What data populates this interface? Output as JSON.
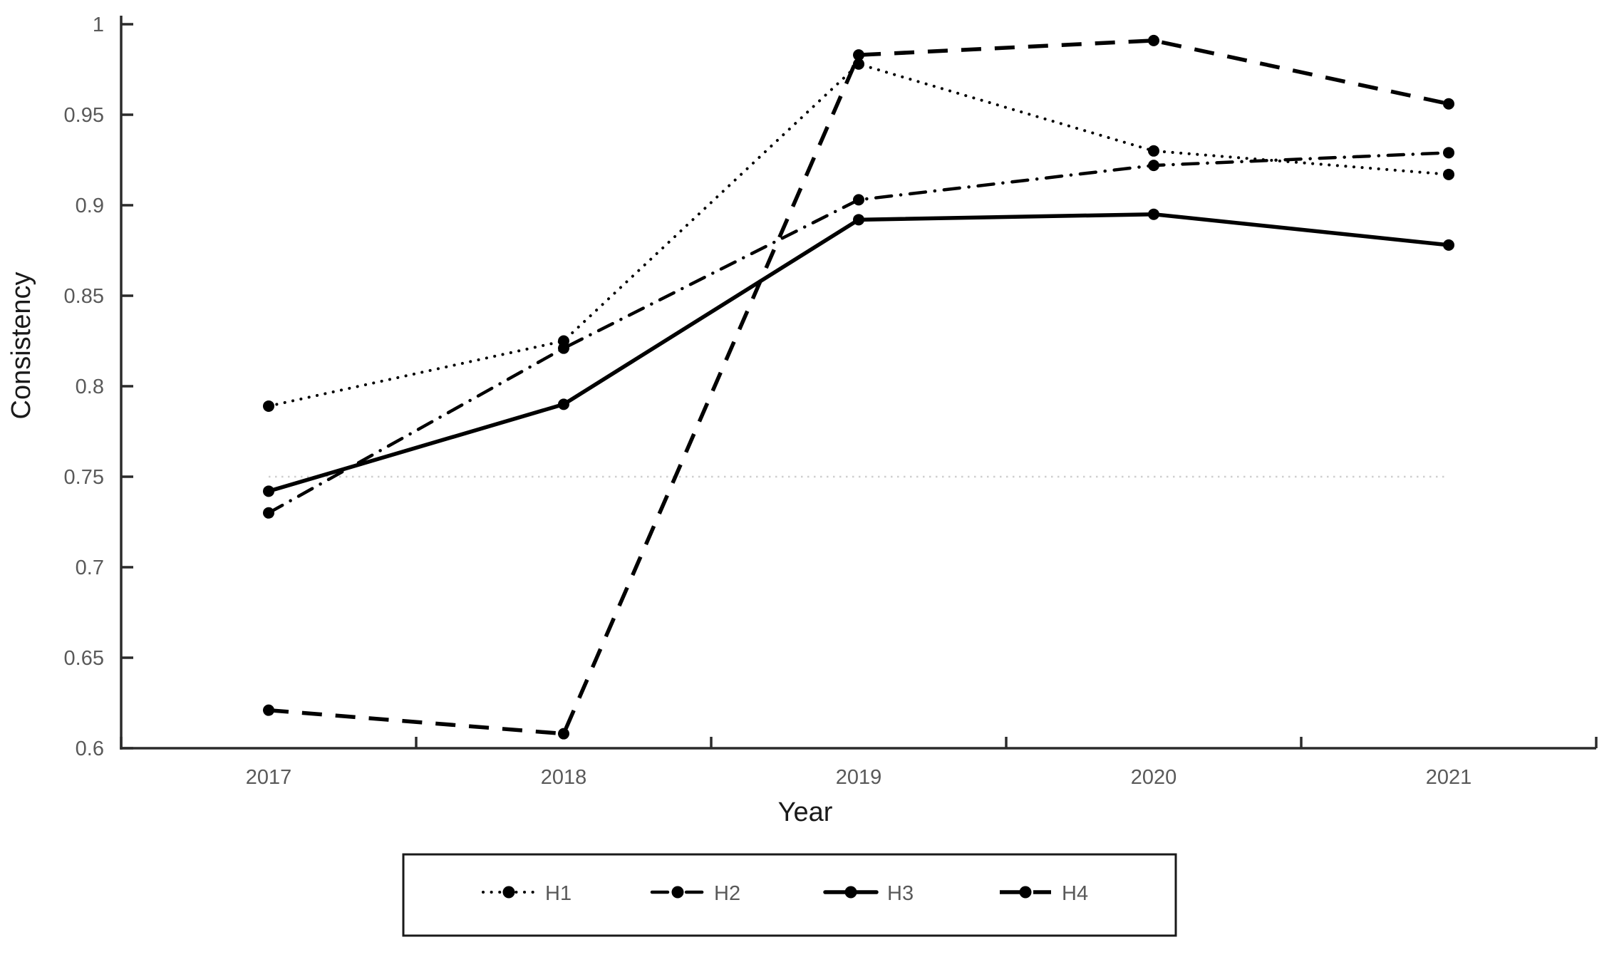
{
  "chart_data": {
    "type": "line",
    "title": "",
    "xlabel": "Year",
    "ylabel": "Consistency",
    "categories": [
      "2017",
      "2018",
      "2019",
      "2020",
      "2021"
    ],
    "series": [
      {
        "name": "H1",
        "style": "dotted",
        "marker": "circle",
        "values": [
          0.789,
          0.825,
          0.978,
          0.93,
          0.917
        ]
      },
      {
        "name": "H2",
        "style": "dash-dot",
        "marker": "circle",
        "values": [
          0.73,
          0.821,
          0.903,
          0.922,
          0.929
        ]
      },
      {
        "name": "H3",
        "style": "solid",
        "marker": "circle",
        "values": [
          0.742,
          0.79,
          0.892,
          0.895,
          0.878
        ]
      },
      {
        "name": "H4",
        "style": "dashed",
        "marker": "circle",
        "values": [
          0.621,
          0.608,
          0.983,
          0.991,
          0.956
        ]
      }
    ],
    "reference_line": {
      "y": 0.75,
      "style": "dotted",
      "color": "#cfcfcf",
      "x_from": "2017",
      "x_to": "2021"
    },
    "ylim": [
      0.6,
      1.0
    ],
    "ytick_step": 0.05,
    "ytick_labels": [
      "0.6",
      "0.65",
      "0.7",
      "0.75",
      "0.8",
      "0.85",
      "0.9",
      "0.95",
      "1"
    ],
    "grid": "off",
    "legend": {
      "position": "bottom",
      "entries": [
        "H1",
        "H2",
        "H3",
        "H4"
      ]
    },
    "colors": {
      "series_line": "#000000",
      "marker": "#000000",
      "tick_label": "#595959",
      "axis_title": "#1a1a1a",
      "axis_line": "#2b2b2b",
      "legend_border": "#1a1a1a",
      "background": "#ffffff"
    }
  }
}
